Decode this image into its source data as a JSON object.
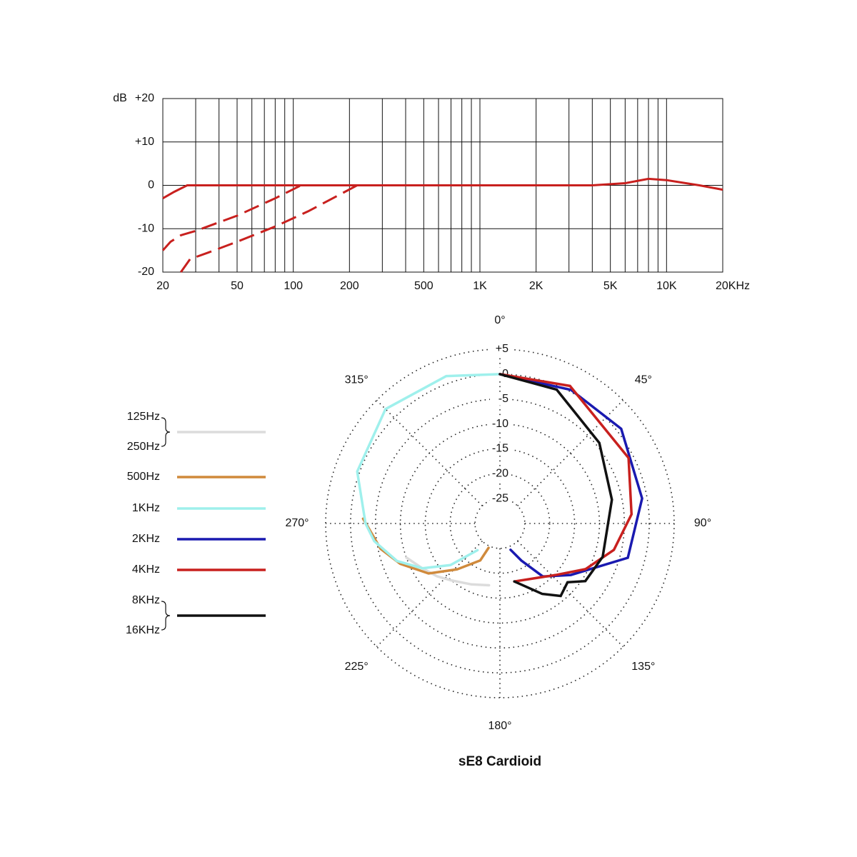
{
  "chart_data": [
    {
      "type": "line",
      "log_x": true,
      "ylabel": "dB",
      "xlim": [
        20,
        20000
      ],
      "ylim": [
        -20,
        20
      ],
      "xticks": [
        20,
        50,
        100,
        200,
        500,
        {
          "value": 1000,
          "label": "1K"
        },
        {
          "value": 2000,
          "label": "2K"
        },
        {
          "value": 5000,
          "label": "5K"
        },
        {
          "value": 10000,
          "label": "10K"
        },
        {
          "value": 20000,
          "label": "20KHz"
        }
      ],
      "x_gridlines": [
        30,
        40,
        50,
        60,
        70,
        80,
        90,
        100,
        200,
        300,
        400,
        500,
        600,
        700,
        800,
        900,
        1000,
        2000,
        3000,
        4000,
        5000,
        6000,
        7000,
        8000,
        9000,
        10000
      ],
      "yticks": [
        {
          "value": 20,
          "label": "+20"
        },
        {
          "value": 10,
          "label": "+10"
        },
        0,
        -10,
        -20
      ],
      "grid": true,
      "series": [
        {
          "color": "#c8201e",
          "dashed": false,
          "x": [
            20,
            23,
            27,
            4000,
            6000,
            8000,
            10000,
            15000,
            20000
          ],
          "values": [
            -3,
            -1.5,
            0,
            0,
            0.5,
            1.5,
            1.2,
            0,
            -1
          ]
        },
        {
          "color": "#c8201e",
          "dashed": true,
          "x": [
            20,
            22,
            25,
            30,
            50,
            80,
            110
          ],
          "values": [
            -15,
            -13,
            -11.5,
            -10.5,
            -7,
            -3,
            0
          ]
        },
        {
          "color": "#c8201e",
          "dashed": true,
          "x": [
            25,
            28,
            35,
            50,
            80,
            120,
            220
          ],
          "values": [
            -20,
            -17,
            -15.5,
            -13,
            -9.5,
            -6,
            0
          ]
        }
      ]
    },
    {
      "type": "polar",
      "title": "sE8  Cardioid",
      "rlim": [
        -30,
        5
      ],
      "rticks": [
        {
          "value": 5,
          "label": "+5"
        },
        0,
        -5,
        -10,
        -15,
        -20,
        -25
      ],
      "angle_ticks": [
        {
          "value": 0,
          "label": "0°"
        },
        {
          "value": 45,
          "label": "45°"
        },
        {
          "value": 90,
          "label": "90°"
        },
        {
          "value": 135,
          "label": "135°"
        },
        {
          "value": 180,
          "label": "180°"
        },
        {
          "value": 225,
          "label": "225°"
        },
        {
          "value": 270,
          "label": "270°"
        },
        {
          "value": 315,
          "label": "315°"
        }
      ],
      "series": [
        {
          "labels": [
            "125Hz",
            "250Hz"
          ],
          "color": "#dcdcdc",
          "theta": [
            250,
            240,
            230,
            221,
            205,
            190
          ],
          "values": [
            -10,
            -12,
            -13.5,
            -14.9,
            -16.5,
            -17.4
          ]
        },
        {
          "labels": [
            "500Hz"
          ],
          "color": "#d08a3c",
          "theta": [
            272,
            268,
            258,
            248,
            235,
            223,
            208,
            205
          ],
          "values": [
            -2.5,
            -3.6,
            -5.5,
            -8.4,
            -12.5,
            -17.4,
            -21.6,
            -24.6
          ]
        },
        {
          "labels": [
            "1KHz"
          ],
          "color": "#9ff0ec",
          "theta": [
            360,
            340,
            315,
            290,
            270,
            262,
            250,
            240,
            230,
            220
          ],
          "values": [
            0,
            1.5,
            2.5,
            0.5,
            -3,
            -4.5,
            -8,
            -12,
            -17,
            -23
          ]
        },
        {
          "labels": [
            "2KHz"
          ],
          "color": "#1a1ab0",
          "theta": [
            0,
            28,
            52,
            80,
            105,
            126,
            141,
            150,
            158
          ],
          "values": [
            0,
            0.4,
            0.9,
            -1,
            -3.4,
            -12.4,
            -16.3,
            -21.4,
            -24.3
          ]
        },
        {
          "labels": [
            "4KHz"
          ],
          "color": "#c8201e",
          "theta": [
            0,
            27,
            63,
            86,
            103,
            118,
            132,
            166
          ],
          "values": [
            0,
            1,
            -1,
            -3.5,
            -6.5,
            -10.5,
            -14.6,
            -18
          ]
        },
        {
          "labels": [
            "8KHz",
            "16KHz"
          ],
          "color": "#111111",
          "theta": [
            0,
            23,
            51,
            78,
            108,
            124,
            131,
            140,
            149,
            166
          ],
          "values": [
            0,
            -0.8,
            -4.3,
            -7,
            -8.3,
            -9.3,
            -12,
            -11,
            -13.5,
            -18
          ]
        }
      ]
    }
  ]
}
